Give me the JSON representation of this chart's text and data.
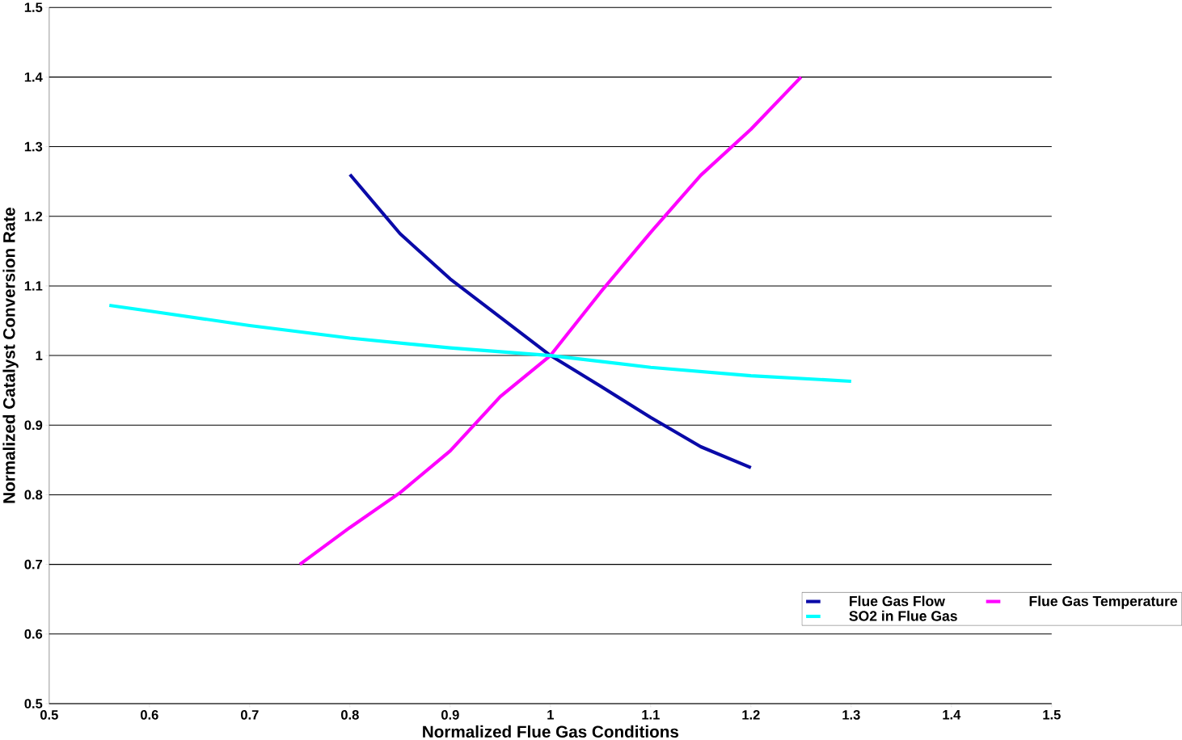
{
  "chart_data": {
    "type": "line",
    "xlabel": "Normalized Flue Gas Conditions",
    "ylabel": "Normalized Catalyst Conversion Rate",
    "xlim": [
      0.5,
      1.5
    ],
    "xticks": [
      0.5,
      0.6,
      0.7,
      0.8,
      0.9,
      1,
      1.1,
      1.2,
      1.3,
      1.4,
      1.5
    ],
    "ylim": [
      0.5,
      1.5
    ],
    "yticks": [
      0.5,
      0.6,
      0.7,
      0.8,
      0.9,
      1,
      1.1,
      1.2,
      1.3,
      1.4,
      1.5
    ],
    "grid": "y",
    "legend": "bottom right",
    "marker": "none",
    "line_style": "solid",
    "series": [
      {
        "name": "Flue Gas Flow",
        "color": "#0a0aa8",
        "x": [
          0.8,
          0.85,
          0.9,
          0.95,
          1,
          1.05,
          1.1,
          1.15,
          1.2
        ],
        "values": [
          1.26,
          1.175,
          1.11,
          1.055,
          1.0,
          0.956,
          0.911,
          0.869,
          0.839
        ]
      },
      {
        "name": "Flue Gas Temperature",
        "color": "#ff00ff",
        "x": [
          0.75,
          0.8,
          0.85,
          0.9,
          0.95,
          1,
          1.05,
          1.1,
          1.15,
          1.2,
          1.25
        ],
        "values": [
          0.7,
          0.753,
          0.803,
          0.863,
          0.941,
          1.0,
          1.091,
          1.177,
          1.259,
          1.325,
          1.4
        ]
      },
      {
        "name": "SO2 in Flue Gas",
        "color": "#00ffff",
        "x": [
          0.56,
          0.6,
          0.7,
          0.8,
          0.9,
          1,
          1.1,
          1.2,
          1.3
        ],
        "values": [
          1.072,
          1.064,
          1.043,
          1.025,
          1.011,
          1.0,
          0.983,
          0.971,
          0.963
        ]
      }
    ]
  }
}
